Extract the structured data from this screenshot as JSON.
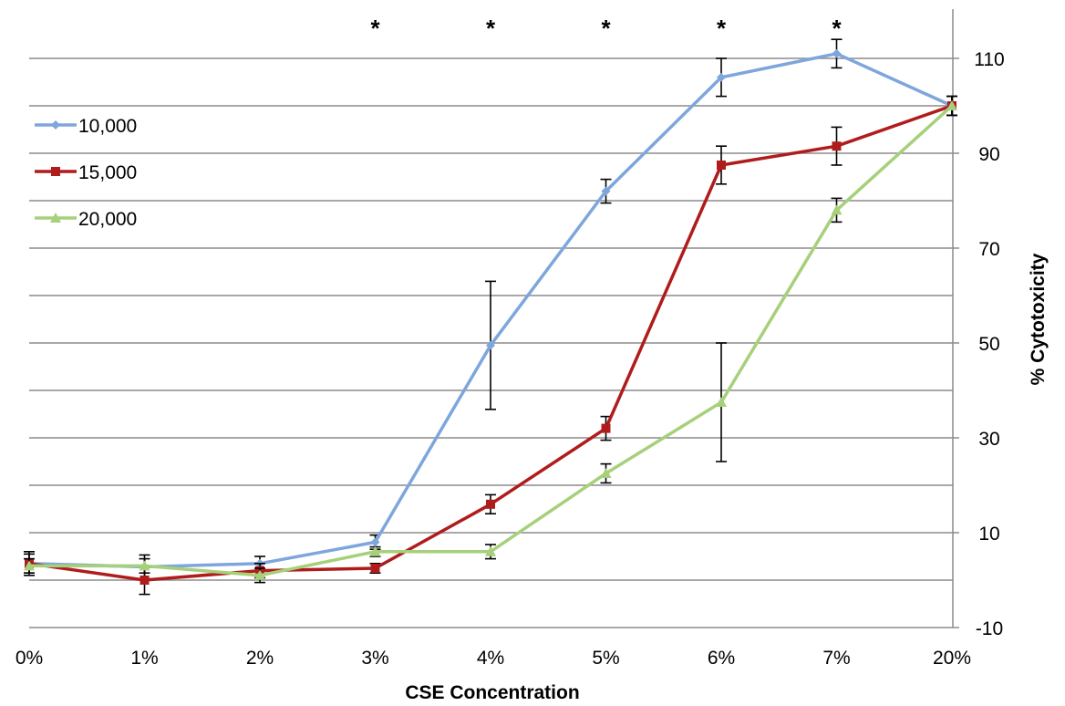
{
  "chart_data": {
    "type": "line",
    "xlabel": "CSE Concentration",
    "ylabel": "% Cytotoxicity",
    "categories": [
      "0%",
      "1%",
      "2%",
      "3%",
      "4%",
      "5%",
      "6%",
      "7%",
      "20%"
    ],
    "ylim": [
      -10,
      120
    ],
    "yticks": [
      -10,
      10,
      30,
      50,
      70,
      90,
      110
    ],
    "grid": true,
    "y_axis_side": "right",
    "legend_position": "top-left",
    "series": [
      {
        "name": "10,000",
        "color": "#7ea6dc",
        "marker": "diamond",
        "values": [
          3.5,
          2.8,
          3.5,
          8.0,
          49.5,
          82.0,
          106.0,
          111.0,
          100.0
        ],
        "errors": [
          2.5,
          2.5,
          1.5,
          1.5,
          13.5,
          2.5,
          4.0,
          3.0,
          2.0
        ]
      },
      {
        "name": "15,000",
        "color": "#b01c1c",
        "marker": "square",
        "values": [
          3.5,
          0.0,
          2.0,
          2.5,
          16.0,
          32.0,
          87.5,
          91.5,
          100.0
        ],
        "errors": [
          2.0,
          3.0,
          1.5,
          1.0,
          2.0,
          2.5,
          4.0,
          4.0,
          2.0
        ]
      },
      {
        "name": "20,000",
        "color": "#a6d07a",
        "marker": "triangle",
        "values": [
          3.0,
          3.0,
          1.0,
          6.0,
          6.0,
          22.5,
          37.5,
          78.0,
          100.0
        ],
        "errors": [
          1.5,
          1.5,
          1.5,
          1.0,
          1.5,
          2.0,
          12.5,
          2.5,
          2.0
        ]
      }
    ],
    "annotations": [
      {
        "category": "3%",
        "text": "*"
      },
      {
        "category": "4%",
        "text": "*"
      },
      {
        "category": "5%",
        "text": "*"
      },
      {
        "category": "6%",
        "text": "*"
      },
      {
        "category": "7%",
        "text": "*"
      }
    ]
  }
}
